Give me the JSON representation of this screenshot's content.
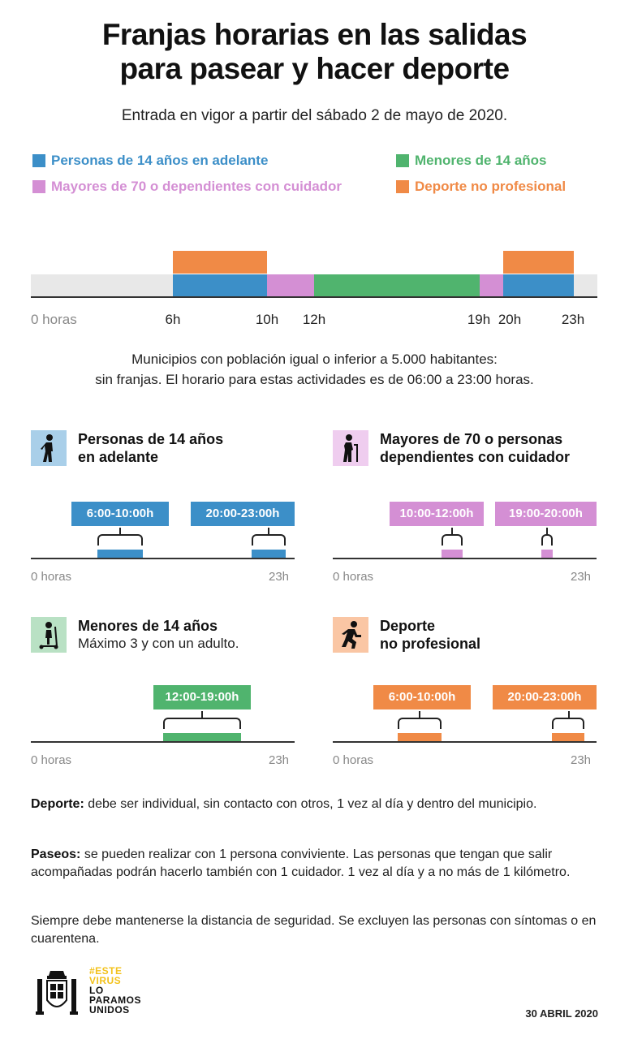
{
  "title_line1": "Franjas horarias en las salidas",
  "title_line2": "para pasear y hacer deporte",
  "subtitle": "Entrada en vigor a partir del sábado 2 de mayo de 2020.",
  "legend": [
    {
      "label": "Personas de 14 años en adelante",
      "color": "#3c8fc8"
    },
    {
      "label": "Menores de 14 años",
      "color": "#50b46e"
    },
    {
      "label": "Mayores de 70 o dependientes con cuidador",
      "color": "#d48fd4"
    },
    {
      "label": "Deporte no profesional",
      "color": "#f08a46"
    }
  ],
  "timeline": {
    "start_label": "0 horas",
    "ticks": [
      "6h",
      "10h",
      "12h",
      "19h",
      "20h",
      "23h"
    ],
    "blocks": [
      {
        "group": "Personas de 14 años en adelante",
        "start": 6,
        "end": 10,
        "color": "#3c8fc8"
      },
      {
        "group": "Mayores de 70 o dependientes con cuidador",
        "start": 10,
        "end": 12,
        "color": "#d48fd4"
      },
      {
        "group": "Menores de 14 años",
        "start": 12,
        "end": 19,
        "color": "#50b46e"
      },
      {
        "group": "Mayores de 70 o dependientes con cuidador",
        "start": 19,
        "end": 20,
        "color": "#d48fd4"
      },
      {
        "group": "Personas de 14 años en adelante",
        "start": 20,
        "end": 23,
        "color": "#3c8fc8"
      },
      {
        "group": "Deporte no profesional",
        "start": 6,
        "end": 10,
        "color": "#f08a46",
        "row": "top"
      },
      {
        "group": "Deporte no profesional",
        "start": 20,
        "end": 23,
        "color": "#f08a46",
        "row": "top"
      }
    ]
  },
  "note_line1": "Municipios con población igual o inferior a 5.000 habitantes:",
  "note_line2": "sin franjas. El horario para estas actividades es de 06:00 a 23:00 horas.",
  "panels": {
    "adults": {
      "title1": "Personas de 14 años",
      "title2": "en adelante",
      "icon": "walking-person-icon",
      "ranges": [
        "6:00-10:00h",
        "20:00-23:00h"
      ],
      "color": "#3c8fc8",
      "bg": "#a9cfe9",
      "axis_start": "0 horas",
      "axis_end": "23h"
    },
    "elderly": {
      "title1": "Mayores de 70 o personas",
      "title2": "dependientes con cuidador",
      "icon": "elderly-cane-icon",
      "ranges": [
        "10:00-12:00h",
        "19:00-20:00h"
      ],
      "color": "#d48fd4",
      "bg": "#efcdef",
      "axis_start": "0 horas",
      "axis_end": "23h"
    },
    "minors": {
      "title1": "Menores de 14 años",
      "title2": "Máximo 3 y con un adulto.",
      "icon": "child-scooter-icon",
      "ranges": [
        "12:00-19:00h"
      ],
      "color": "#50b46e",
      "bg": "#b9e1c4",
      "axis_start": "0 horas",
      "axis_end": "23h"
    },
    "sport": {
      "title1": "Deporte",
      "title2": "no profesional",
      "icon": "running-person-icon",
      "ranges": [
        "6:00-10:00h",
        "20:00-23:00h"
      ],
      "color": "#f08a46",
      "bg": "#fac6a4",
      "axis_start": "0 horas",
      "axis_end": "23h"
    }
  },
  "paragraphs": {
    "sport_label": "Deporte:",
    "sport_text": " debe ser individual, sin contacto con otros, 1 vez al día y dentro del municipio.",
    "walk_label": "Paseos:",
    "walk_text": " se pueden realizar con 1 persona conviviente. Las personas que tengan que salir acompañadas podrán hacerlo también con 1 cuidador. 1 vez al día y a no más de 1 kilómetro.",
    "safety_text": "Siempre debe mantenerse la distancia de seguridad. Se excluyen las personas con síntomas o en cuarentena."
  },
  "brand": {
    "line1": "#ESTE",
    "line2": "VIRUS",
    "line3": "LO",
    "line4": "PARAMOS",
    "line5": "UNIDOS"
  },
  "date": "30 ABRIL 2020"
}
